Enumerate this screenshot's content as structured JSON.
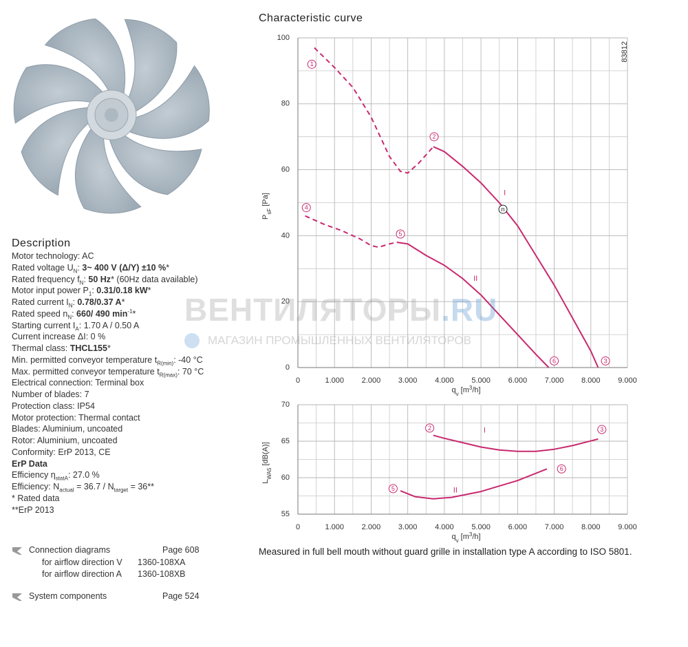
{
  "description": {
    "title": "Description",
    "lines": [
      [
        {
          "t": "Motor technology: AC"
        }
      ],
      [
        {
          "t": "Rated voltage U"
        },
        {
          "t": "N",
          "f": "sub"
        },
        {
          "t": ": "
        },
        {
          "t": "3~ 400 V (Δ/Y) ±10 %",
          "f": "b"
        },
        {
          "t": "*"
        }
      ],
      [
        {
          "t": "Rated frequency f"
        },
        {
          "t": "N",
          "f": "sub"
        },
        {
          "t": ": "
        },
        {
          "t": "50 Hz",
          "f": "b"
        },
        {
          "t": "* (60Hz data available)"
        }
      ],
      [
        {
          "t": "Motor input power P"
        },
        {
          "t": "1",
          "f": "sub"
        },
        {
          "t": ": "
        },
        {
          "t": "0.31/0.18 kW",
          "f": "b"
        },
        {
          "t": "*"
        }
      ],
      [
        {
          "t": "Rated current I"
        },
        {
          "t": "N",
          "f": "sub"
        },
        {
          "t": ": "
        },
        {
          "t": "0.78/0.37 A",
          "f": "b"
        },
        {
          "t": "*"
        }
      ],
      [
        {
          "t": "Rated speed n"
        },
        {
          "t": "N",
          "f": "sub"
        },
        {
          "t": ": "
        },
        {
          "t": "660/ 490 min",
          "f": "b"
        },
        {
          "t": "-1",
          "f": "sup"
        },
        {
          "t": "*"
        }
      ],
      [
        {
          "t": "Starting current I"
        },
        {
          "t": "A",
          "f": "sub"
        },
        {
          "t": ": 1.70 A / 0.50 A"
        }
      ],
      [
        {
          "t": "Current increase ΔI: 0 %"
        }
      ],
      [
        {
          "t": "Thermal class: "
        },
        {
          "t": "THCL155",
          "f": "b"
        },
        {
          "t": "*"
        }
      ],
      [
        {
          "t": "Min. permitted conveyor temperature t"
        },
        {
          "t": "R(min)",
          "f": "sub"
        },
        {
          "t": ": -40 °C"
        }
      ],
      [
        {
          "t": "Max. permitted conveyor temperature t"
        },
        {
          "t": "R(max)",
          "f": "sub"
        },
        {
          "t": ": 70 °C"
        }
      ],
      [
        {
          "t": "Electrical connection: Terminal box"
        }
      ],
      [
        {
          "t": "Number of blades: 7"
        }
      ],
      [
        {
          "t": "Protection class: IP54"
        }
      ],
      [
        {
          "t": "Motor protection: Thermal contact"
        }
      ],
      [
        {
          "t": "Blades: Aluminium, uncoated"
        }
      ],
      [
        {
          "t": "Rotor: Aluminium, uncoated"
        }
      ],
      [
        {
          "t": "Conformity: ErP 2013, CE"
        }
      ],
      [
        {
          "t": "ErP Data",
          "f": "b"
        }
      ],
      [
        {
          "t": "Efficiency η"
        },
        {
          "t": "statA",
          "f": "sub"
        },
        {
          "t": ": 27.0 %"
        }
      ],
      [
        {
          "t": "Efficiency: N"
        },
        {
          "t": "actual",
          "f": "sub"
        },
        {
          "t": " = 36.7 / N"
        },
        {
          "t": "target",
          "f": "sub"
        },
        {
          "t": " = 36**"
        }
      ],
      [
        {
          "t": "* Rated data"
        }
      ],
      [
        {
          "t": "**ErP 2013"
        }
      ]
    ]
  },
  "links": [
    {
      "label": "Connection diagrams",
      "page": "Page 608",
      "items": [
        {
          "label": "for airflow direction V",
          "code": "1360-108XA"
        },
        {
          "label": "for airflow direction A",
          "code": "1360-108XB"
        }
      ]
    },
    {
      "label": "System components",
      "page": "Page 524"
    }
  ],
  "watermark": {
    "brand": "ВЕНТИЛЯТОРЫ",
    "domain": ".RU",
    "tagline": "МАГАЗИН ПРОМЫШЛЕННЫХ ВЕНТИЛЯТОРОВ"
  },
  "chart_title": "Characteristic curve",
  "drawing_number": "83812",
  "note": "Measured in full bell mouth without guard grille in installation type A according to ISO 5801.",
  "chart_data": [
    {
      "type": "line",
      "x_label": [
        {
          "t": "q"
        },
        {
          "t": "v",
          "f": "sub"
        },
        {
          "t": " [m"
        },
        {
          "t": "3",
          "f": "sup"
        },
        {
          "t": "/h]"
        }
      ],
      "y_label": [
        {
          "t": "P"
        },
        {
          "t": "sF",
          "f": "sub"
        },
        {
          "t": " [Pa]"
        }
      ],
      "xlim": [
        0,
        9000
      ],
      "ylim": [
        0,
        100
      ],
      "xticks": [
        0,
        {
          "value": 1000,
          "label": "1.000"
        },
        {
          "value": 2000,
          "label": "2.000"
        },
        {
          "value": 3000,
          "label": "3.000"
        },
        {
          "value": 4000,
          "label": "4.000"
        },
        {
          "value": 5000,
          "label": "5.000"
        },
        {
          "value": 6000,
          "label": "6.000"
        },
        {
          "value": 7000,
          "label": "7.000"
        },
        {
          "value": 8000,
          "label": "8.000"
        },
        {
          "value": 9000,
          "label": "9.000"
        }
      ],
      "yticks": [
        0,
        20,
        40,
        60,
        80,
        100
      ],
      "minor_xticks": [
        500,
        1500,
        2500,
        3500,
        4500,
        5500,
        6500,
        7500,
        8500
      ],
      "minor_yticks": [
        10,
        30,
        50,
        70,
        90
      ],
      "grid": true,
      "series": [
        {
          "color": "#c8286e",
          "style": "dashed",
          "x": [
            450,
            1000,
            1500,
            2000,
            2500,
            2800,
            3000,
            3300,
            3700
          ],
          "values": [
            97,
            91,
            85,
            76,
            64,
            59.5,
            59,
            62,
            67
          ]
        },
        {
          "color": "#c8286e",
          "style": "solid",
          "x": [
            3700,
            4000,
            4500,
            5000,
            5500,
            6000,
            6500,
            7000,
            7500,
            8000,
            8200
          ],
          "values": [
            67,
            65.5,
            61,
            56,
            50,
            43,
            34,
            25,
            15,
            5,
            0
          ]
        },
        {
          "color": "#c8286e",
          "style": "dashed",
          "x": [
            200,
            700,
            1200,
            1700,
            2000,
            2200,
            2500,
            2700
          ],
          "values": [
            46,
            43.5,
            41.5,
            39,
            37,
            36.5,
            37.5,
            38
          ]
        },
        {
          "color": "#c8286e",
          "style": "solid",
          "x": [
            2700,
            3000,
            3500,
            4000,
            4500,
            5000,
            5500,
            6000,
            6500,
            6850
          ],
          "values": [
            38,
            37.5,
            34,
            31,
            27,
            22,
            16,
            10,
            4,
            0
          ]
        }
      ],
      "annotations": [
        {
          "text": "1",
          "x": 380,
          "y": 92,
          "shape": "circle",
          "color": "#c8286e"
        },
        {
          "text": "2",
          "x": 3720,
          "y": 70,
          "shape": "circle",
          "color": "#c8286e"
        },
        {
          "text": "3",
          "x": 8400,
          "y": 2,
          "shape": "circle",
          "color": "#c8286e"
        },
        {
          "text": "4",
          "x": 230,
          "y": 48.5,
          "shape": "circle",
          "color": "#c8286e"
        },
        {
          "text": "5",
          "x": 2800,
          "y": 40.5,
          "shape": "circle",
          "color": "#c8286e"
        },
        {
          "text": "6",
          "x": 7000,
          "y": 2,
          "shape": "circle",
          "color": "#c8286e"
        },
        {
          "text": "n",
          "x": 5600,
          "y": 48,
          "shape": "circle",
          "color": "#222222"
        },
        {
          "text": "I",
          "x": 5650,
          "y": 53,
          "color": "#c8286e"
        },
        {
          "text": "II",
          "x": 4850,
          "y": 27,
          "color": "#c8286e"
        }
      ]
    },
    {
      "type": "line",
      "x_label": [
        {
          "t": "q"
        },
        {
          "t": "v",
          "f": "sub"
        },
        {
          "t": " [m"
        },
        {
          "t": "3",
          "f": "sup"
        },
        {
          "t": "/h]"
        }
      ],
      "y_label": [
        {
          "t": "L"
        },
        {
          "t": "WA5",
          "f": "sub"
        },
        {
          "t": " [dB(A)]"
        }
      ],
      "xlim": [
        0,
        9000
      ],
      "ylim": [
        55,
        70
      ],
      "xticks": [
        0,
        {
          "value": 1000,
          "label": "1.000"
        },
        {
          "value": 2000,
          "label": "2.000"
        },
        {
          "value": 3000,
          "label": "3.000"
        },
        {
          "value": 4000,
          "label": "4.000"
        },
        {
          "value": 5000,
          "label": "5.000"
        },
        {
          "value": 6000,
          "label": "6.000"
        },
        {
          "value": 7000,
          "label": "7.000"
        },
        {
          "value": 8000,
          "label": "8.000"
        },
        {
          "value": 9000,
          "label": "9.000"
        }
      ],
      "yticks": [
        55,
        60,
        65,
        70
      ],
      "minor_xticks": [
        500,
        1500,
        2500,
        3500,
        4500,
        5500,
        6500,
        7500,
        8500
      ],
      "minor_yticks": [
        57.5,
        62.5,
        67.5
      ],
      "grid": true,
      "series": [
        {
          "color": "#c8286e",
          "style": "solid",
          "x": [
            3700,
            4000,
            4500,
            5000,
            5500,
            6000,
            6500,
            7000,
            7500,
            8200
          ],
          "values": [
            65.8,
            65.4,
            64.8,
            64.2,
            63.8,
            63.6,
            63.6,
            63.9,
            64.4,
            65.3
          ]
        },
        {
          "color": "#c8286e",
          "style": "solid",
          "x": [
            2800,
            3200,
            3700,
            4200,
            5000,
            6000,
            6800
          ],
          "values": [
            58.2,
            57.4,
            57.1,
            57.3,
            58.1,
            59.6,
            61.2
          ]
        }
      ],
      "annotations": [
        {
          "text": "2",
          "x": 3600,
          "y": 66.8,
          "shape": "circle",
          "color": "#c8286e"
        },
        {
          "text": "I",
          "x": 5100,
          "y": 66.5,
          "color": "#c8286e"
        },
        {
          "text": "3",
          "x": 8300,
          "y": 66.6,
          "shape": "circle",
          "color": "#c8286e"
        },
        {
          "text": "5",
          "x": 2600,
          "y": 58.5,
          "shape": "circle",
          "color": "#c8286e"
        },
        {
          "text": "II",
          "x": 4300,
          "y": 58.3,
          "color": "#c8286e"
        },
        {
          "text": "6",
          "x": 7200,
          "y": 61.2,
          "shape": "circle",
          "color": "#c8286e"
        }
      ]
    }
  ]
}
